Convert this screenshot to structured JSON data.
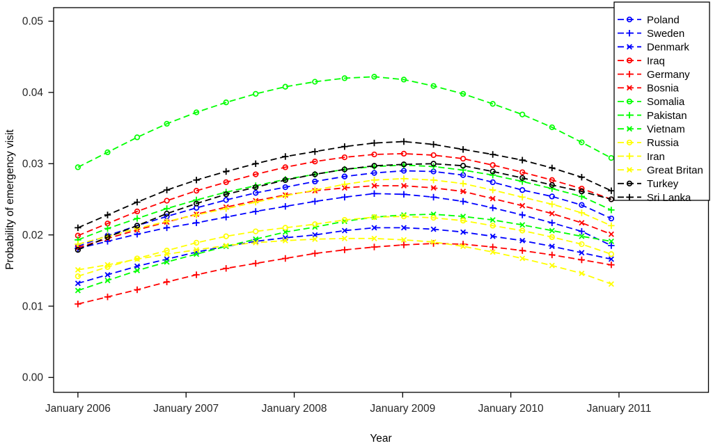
{
  "chart_data": {
    "type": "line",
    "title": "",
    "xlabel": "Year",
    "ylabel": "Probability of emergency visit",
    "grid": false,
    "legend_position": "top-right",
    "x_unit": "days since January 2006, one point every 100 days",
    "x_days": [
      0,
      100,
      200,
      300,
      400,
      500,
      600,
      700,
      800,
      900,
      1000,
      1100,
      1200,
      1300,
      1400,
      1500,
      1600,
      1700,
      1800
    ],
    "xlim": [
      -82,
      2128
    ],
    "ylim": [
      -0.0021,
      0.0519
    ],
    "x_ticks": [
      {
        "label": "January 2006",
        "day": 0
      },
      {
        "label": "January 2007",
        "day": 365
      },
      {
        "label": "January 2008",
        "day": 730
      },
      {
        "label": "January 2009",
        "day": 1096
      },
      {
        "label": "January 2010",
        "day": 1461
      },
      {
        "label": "January 2011",
        "day": 1826
      }
    ],
    "y_ticks": [
      {
        "label": "0.00",
        "value": 0.0
      },
      {
        "label": "0.01",
        "value": 0.01
      },
      {
        "label": "0.02",
        "value": 0.02
      },
      {
        "label": "0.03",
        "value": 0.03
      },
      {
        "label": "0.04",
        "value": 0.04
      },
      {
        "label": "0.05",
        "value": 0.05
      }
    ],
    "series": [
      {
        "name": "Poland",
        "color": "#0000ff",
        "marker": "circle",
        "values": [
          0.0184,
          0.0199,
          0.0213,
          0.0226,
          0.0238,
          0.0249,
          0.0259,
          0.0267,
          0.0275,
          0.0282,
          0.0287,
          0.029,
          0.0289,
          0.0284,
          0.0274,
          0.0263,
          0.0254,
          0.0242,
          0.0223
        ]
      },
      {
        "name": "Sweden",
        "color": "#0000ff",
        "marker": "plus",
        "values": [
          0.0181,
          0.0191,
          0.0201,
          0.021,
          0.0217,
          0.0225,
          0.0233,
          0.024,
          0.0247,
          0.0253,
          0.0258,
          0.0257,
          0.0253,
          0.0247,
          0.0238,
          0.0228,
          0.0217,
          0.0205,
          0.0185
        ]
      },
      {
        "name": "Denmark",
        "color": "#0000ff",
        "marker": "cross",
        "values": [
          0.0132,
          0.0144,
          0.0156,
          0.0166,
          0.0176,
          0.0184,
          0.0191,
          0.0196,
          0.02,
          0.0206,
          0.021,
          0.021,
          0.0208,
          0.0204,
          0.0198,
          0.0192,
          0.0184,
          0.0175,
          0.0166
        ]
      },
      {
        "name": "Iraq",
        "color": "#ff0000",
        "marker": "circle",
        "values": [
          0.0199,
          0.0216,
          0.0233,
          0.0248,
          0.0262,
          0.0274,
          0.0285,
          0.0295,
          0.0303,
          0.0309,
          0.0313,
          0.0314,
          0.0312,
          0.0307,
          0.0298,
          0.0288,
          0.0277,
          0.0265,
          0.025
        ]
      },
      {
        "name": "Germany",
        "color": "#ff0000",
        "marker": "plus",
        "values": [
          0.0103,
          0.0113,
          0.0123,
          0.0134,
          0.0144,
          0.0153,
          0.016,
          0.0167,
          0.0174,
          0.0179,
          0.0183,
          0.0186,
          0.0188,
          0.0187,
          0.0183,
          0.0178,
          0.0172,
          0.0165,
          0.0158
        ]
      },
      {
        "name": "Bosnia",
        "color": "#ff0000",
        "marker": "cross",
        "values": [
          0.0182,
          0.0195,
          0.0207,
          0.0218,
          0.0229,
          0.0239,
          0.0248,
          0.0256,
          0.0262,
          0.0266,
          0.0269,
          0.0269,
          0.0266,
          0.0261,
          0.0251,
          0.0241,
          0.023,
          0.0217,
          0.0201
        ]
      },
      {
        "name": "Somalia",
        "color": "#00ff00",
        "marker": "circle",
        "values": [
          0.0295,
          0.0316,
          0.0337,
          0.0356,
          0.0372,
          0.0386,
          0.0398,
          0.0408,
          0.0415,
          0.042,
          0.0422,
          0.0418,
          0.0409,
          0.0398,
          0.0384,
          0.0369,
          0.0351,
          0.033,
          0.0308
        ]
      },
      {
        "name": "Pakistan",
        "color": "#00ff00",
        "marker": "plus",
        "values": [
          0.0193,
          0.0209,
          0.0223,
          0.0237,
          0.0249,
          0.026,
          0.0269,
          0.0278,
          0.0285,
          0.0292,
          0.0296,
          0.0298,
          0.0296,
          0.0291,
          0.0284,
          0.0275,
          0.0265,
          0.0254,
          0.0235
        ]
      },
      {
        "name": "Vietnam",
        "color": "#00ff00",
        "marker": "cross",
        "values": [
          0.0122,
          0.0136,
          0.015,
          0.0162,
          0.0173,
          0.0184,
          0.0194,
          0.0204,
          0.0211,
          0.0219,
          0.0225,
          0.0228,
          0.0229,
          0.0226,
          0.0221,
          0.0214,
          0.0206,
          0.0198,
          0.0191
        ]
      },
      {
        "name": "Russia",
        "color": "#ffff00",
        "marker": "circle",
        "values": [
          0.0142,
          0.0155,
          0.0167,
          0.0178,
          0.0189,
          0.0198,
          0.0205,
          0.021,
          0.0215,
          0.0221,
          0.0225,
          0.0226,
          0.0224,
          0.022,
          0.0213,
          0.0206,
          0.0197,
          0.0187,
          0.0173
        ]
      },
      {
        "name": "Iran",
        "color": "#ffff00",
        "marker": "plus",
        "values": [
          0.0187,
          0.0198,
          0.0209,
          0.0219,
          0.0228,
          0.0237,
          0.0246,
          0.0255,
          0.0263,
          0.0271,
          0.0277,
          0.0279,
          0.0277,
          0.0272,
          0.0263,
          0.0253,
          0.0243,
          0.0231,
          0.0213
        ]
      },
      {
        "name": "Great Britan",
        "color": "#ffff00",
        "marker": "cross",
        "values": [
          0.0151,
          0.0158,
          0.0166,
          0.0173,
          0.0179,
          0.0185,
          0.0189,
          0.0192,
          0.0194,
          0.0195,
          0.0195,
          0.0193,
          0.019,
          0.0184,
          0.0176,
          0.0167,
          0.0157,
          0.0146,
          0.0131
        ]
      },
      {
        "name": "Turkey",
        "color": "#000000",
        "marker": "circle",
        "values": [
          0.0179,
          0.0197,
          0.0213,
          0.023,
          0.0244,
          0.0257,
          0.0267,
          0.0277,
          0.0285,
          0.0292,
          0.0297,
          0.0299,
          0.03,
          0.0297,
          0.0289,
          0.028,
          0.027,
          0.0261,
          0.025
        ]
      },
      {
        "name": "Sri Lanka",
        "color": "#000000",
        "marker": "plus",
        "values": [
          0.021,
          0.0228,
          0.0246,
          0.0263,
          0.0277,
          0.0289,
          0.03,
          0.031,
          0.0317,
          0.0324,
          0.0329,
          0.0331,
          0.0327,
          0.032,
          0.0313,
          0.0305,
          0.0294,
          0.0281,
          0.0262
        ]
      }
    ]
  }
}
